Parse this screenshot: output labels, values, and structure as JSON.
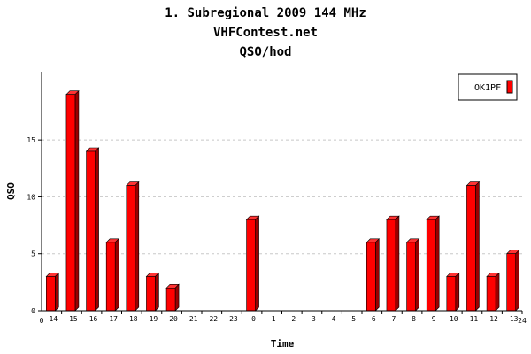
{
  "chart_data": {
    "type": "bar",
    "title_lines": [
      "1. Subregional 2009  144 MHz",
      "VHFContest.net",
      "QSO/hod"
    ],
    "xlabel": "Time",
    "ylabel": "QSO",
    "ylim": [
      0,
      21
    ],
    "y_ticks": [
      "0",
      "5",
      "10",
      "15"
    ],
    "y_tick_values": [
      0,
      5,
      10,
      15
    ],
    "x_axis_start_label": "0",
    "x_axis_end_label": "24",
    "categories": [
      "14",
      "15",
      "16",
      "17",
      "18",
      "19",
      "20",
      "21",
      "22",
      "23",
      "0",
      "1",
      "2",
      "3",
      "4",
      "5",
      "6",
      "7",
      "8",
      "9",
      "10",
      "11",
      "12",
      "13"
    ],
    "series": [
      {
        "name": "OK1PF",
        "color": "#ff0000",
        "values": [
          3,
          19,
          14,
          6,
          11,
          3,
          2,
          0,
          0,
          0,
          8,
          0,
          0,
          0,
          0,
          0,
          6,
          8,
          6,
          8,
          3,
          11,
          3,
          5
        ]
      }
    ],
    "grid": true,
    "legend_position": "top-right"
  }
}
